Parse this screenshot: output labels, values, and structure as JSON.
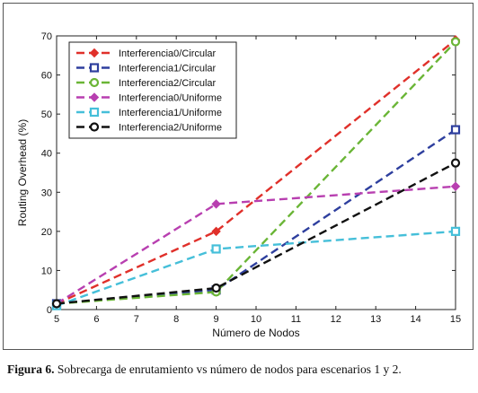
{
  "caption": {
    "label": "Figura 6.",
    "text": "Sobrecarga de enrutamiento vs número de nodos para escenarios 1 y 2."
  },
  "chart_data": {
    "type": "line",
    "xlabel": "Número de Nodos",
    "ylabel": "Routing Overhead (%)",
    "xlim": [
      5,
      15
    ],
    "ylim": [
      0,
      70
    ],
    "xticks": [
      "5",
      "6",
      "7",
      "8",
      "9",
      "10",
      "11",
      "12",
      "13",
      "14",
      "15"
    ],
    "yticks": [
      "0",
      "10",
      "20",
      "30",
      "40",
      "50",
      "60",
      "70"
    ],
    "x": [
      5,
      9,
      15
    ],
    "grid": false,
    "legend_position": "top-left",
    "series": [
      {
        "name": "Interferencia0/Circular",
        "values": [
          1.5,
          20,
          69
        ],
        "color": "#e0302a",
        "marker": "diamond"
      },
      {
        "name": "Interferencia1/Circular",
        "values": [
          1.5,
          5,
          46
        ],
        "color": "#2e3f9e",
        "marker": "square"
      },
      {
        "name": "Interferencia2/Circular",
        "values": [
          1.5,
          4.5,
          68.5
        ],
        "color": "#6ab536",
        "marker": "circle"
      },
      {
        "name": "Interferencia0/Uniforme",
        "values": [
          1.5,
          27,
          31.5
        ],
        "color": "#b83fb0",
        "marker": "diamond"
      },
      {
        "name": "Interferencia1/Uniforme",
        "values": [
          1.0,
          15.5,
          20
        ],
        "color": "#45bfd9",
        "marker": "square"
      },
      {
        "name": "Interferencia2/Uniforme",
        "values": [
          1.5,
          5.5,
          37.5
        ],
        "color": "#111111",
        "marker": "circle"
      }
    ]
  }
}
